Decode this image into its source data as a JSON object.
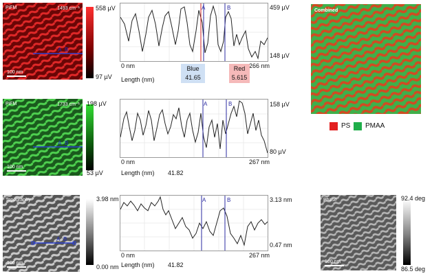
{
  "panels": {
    "pifm1493": {
      "label": "PiFM",
      "wavenumber": "1493 cm⁻¹",
      "scale": "100 nm",
      "marker_a": "A",
      "marker_b": "B",
      "cbar_max": "558 µV",
      "cbar_min": "97 µV",
      "color": "#d81e1e"
    },
    "pifm1733": {
      "label": "PiFM",
      "wavenumber": "1733 cm⁻¹",
      "scale": "100 nm",
      "marker_a": "A",
      "marker_b": "B",
      "cbar_max": "198 µV",
      "cbar_min": "53 µV",
      "color": "#2fc23a"
    },
    "topography": {
      "label": "Topography",
      "scale": "100 nm",
      "marker_a": "A",
      "marker_b": "B",
      "cbar_max": "3.98 nm",
      "cbar_min": "0.00 nm"
    },
    "combined": {
      "label": "Combined"
    },
    "phase": {
      "label": "Phase",
      "scale": "100 nm",
      "cbar_max": "92.4 deg",
      "cbar_min": "86.5 deg"
    }
  },
  "profiles": {
    "p1": {
      "y_max": "459 µV",
      "y_min": "148 µV",
      "x_min": "0 nm",
      "x_max": "266 nm",
      "x_title": "Length (nm)",
      "marker_a": "A",
      "marker_b": "B",
      "blue_label": "Blue",
      "blue_value": "41.65",
      "red_label": "Red",
      "red_value": "5.615"
    },
    "p2": {
      "y_max": "158 µV",
      "y_min": "80 µV",
      "x_min": "0 nm",
      "x_max": "267 nm",
      "x_title": "Length (nm)",
      "distance": "41.82",
      "marker_a": "A",
      "marker_b": "B"
    },
    "p3": {
      "y_max": "3.13 nm",
      "y_min": "0.47 nm",
      "x_min": "0 nm",
      "x_max": "267 nm",
      "x_title": "Length (nm)",
      "distance": "41.82",
      "marker_a": "A",
      "marker_b": "B"
    }
  },
  "legend": {
    "ps_label": "PS",
    "ps_color": "#e32020",
    "pmaa_label": "PMAA",
    "pmaa_color": "#1fae4a"
  }
}
